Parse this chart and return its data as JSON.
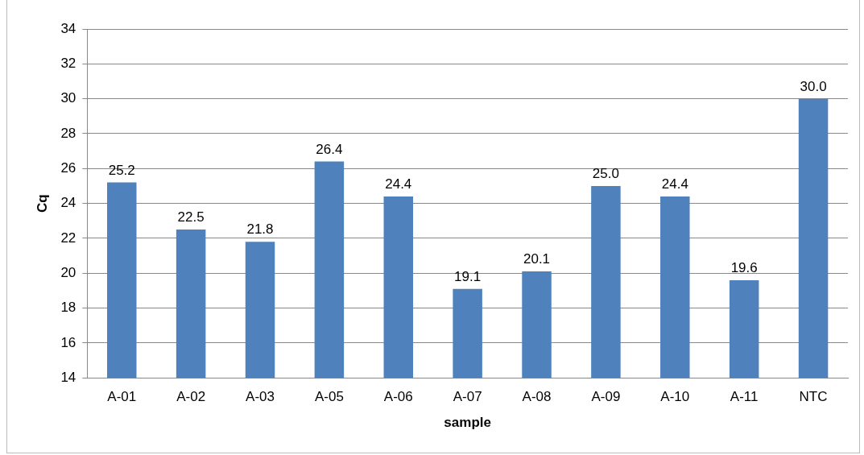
{
  "chart_data": {
    "type": "bar",
    "xlabel": "sample",
    "ylabel": "Cq",
    "categories": [
      "A-01",
      "A-02",
      "A-03",
      "A-05",
      "A-06",
      "A-07",
      "A-08",
      "A-09",
      "A-10",
      "A-11",
      "NTC"
    ],
    "values": [
      25.2,
      22.5,
      21.8,
      26.4,
      24.4,
      19.1,
      20.1,
      25.0,
      24.4,
      19.6,
      30.0
    ],
    "value_labels": [
      "25.2",
      "22.5",
      "21.8",
      "26.4",
      "24.4",
      "19.1",
      "20.1",
      "25.0",
      "24.4",
      "19.6",
      "30.0"
    ],
    "color": "#4f81bd",
    "ylim": [
      14,
      34
    ],
    "yticks": [
      14,
      16,
      18,
      20,
      22,
      24,
      26,
      28,
      30,
      32,
      34
    ],
    "grid": "y"
  }
}
